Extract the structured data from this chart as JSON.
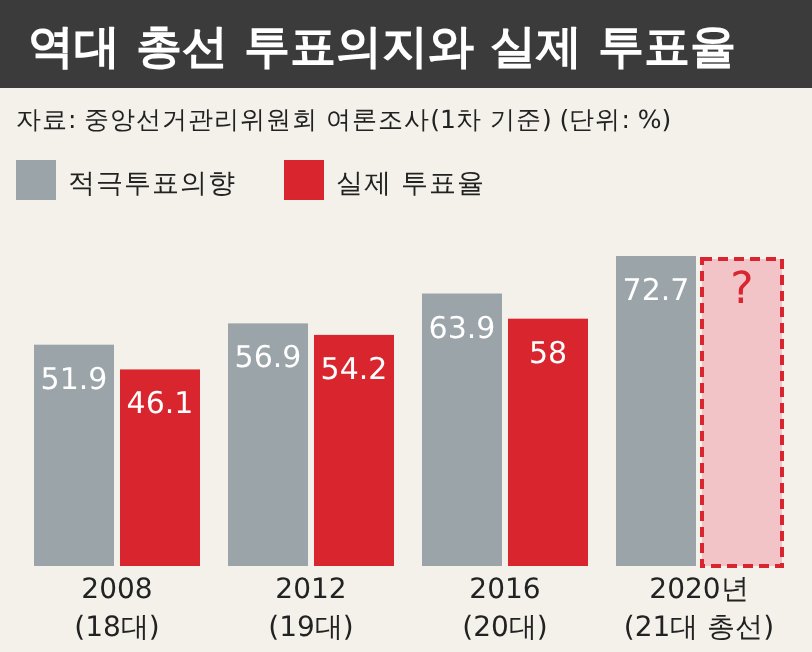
{
  "chart_data": {
    "type": "bar",
    "title": "역대 총선 투표의지와 실제 투표율",
    "subtitle": "자료: 중앙선거관리위원회 여론조사(1차 기준)   (단위: %)",
    "categories": [
      "2008\n(18대)",
      "2012\n(19대)",
      "2016\n(20대)",
      "2020년\n(21대 총선)"
    ],
    "relative": false,
    "legend": "top left",
    "series": [
      {
        "name": "적극투표의향",
        "color": "#9ba4a9",
        "values": [
          51.9,
          56.9,
          63.9,
          72.7
        ],
        "value_labels": [
          "51.9",
          "56.9",
          "63.9",
          "72.7"
        ]
      },
      {
        "name": "실제 투표율",
        "color": "#d9262e",
        "colors": [
          "#d9262e",
          "#d9262e",
          "#d9262e",
          "#f2c3c7"
        ],
        "values": [
          46.1,
          54.2,
          58,
          72
        ],
        "value_labels": [
          "46.1",
          "54.2",
          "58",
          "?"
        ]
      }
    ]
  }
}
